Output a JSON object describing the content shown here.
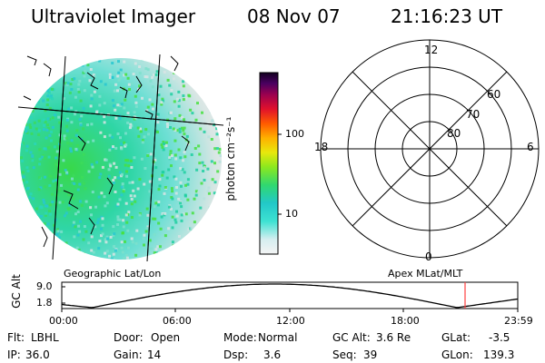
{
  "header": {
    "instrument": "Ultraviolet Imager",
    "date": "08 Nov 07",
    "time": "21:16:23 UT"
  },
  "colorbar": {
    "label": "photon cm⁻²s⁻¹",
    "ticks": [
      "100",
      "10"
    ]
  },
  "polar": {
    "mlt_labels": {
      "top": "12",
      "left": "18",
      "right": "6",
      "bottom": "0"
    },
    "lat_labels": [
      "60",
      "70",
      "80"
    ]
  },
  "timeline": {
    "left_caption": "Geographic Lat/Lon",
    "right_caption": "Apex MLat/MLT",
    "axis_label": "GC Alt",
    "y_ticks": [
      "9.0",
      "1.8"
    ],
    "x_ticks": [
      "00:00",
      "06:00",
      "12:00",
      "18:00",
      "23:59"
    ],
    "current_time_marker": "21:16:23"
  },
  "info": {
    "row1": [
      {
        "label": "Flt:",
        "value": "LBHL"
      },
      {
        "label": "Door:",
        "value": "Open"
      },
      {
        "label": "Mode:",
        "value": "Normal"
      },
      {
        "label": "GC Alt:",
        "value": "3.6 Re"
      },
      {
        "label": "GLat:",
        "value": "-3.5"
      }
    ],
    "row2": [
      {
        "label": "IP:",
        "value": "36.0"
      },
      {
        "label": "Gain:",
        "value": "14"
      },
      {
        "label": "Dsp:",
        "value": "3.6"
      },
      {
        "label": "Seq:",
        "value": "39"
      },
      {
        "label": "GLon:",
        "value": "139.3"
      }
    ]
  },
  "colors": {
    "accent_green": "#3ed62e",
    "teal": "#26d8c0",
    "light": "#dfe6e6",
    "marker": "#ff4040"
  }
}
